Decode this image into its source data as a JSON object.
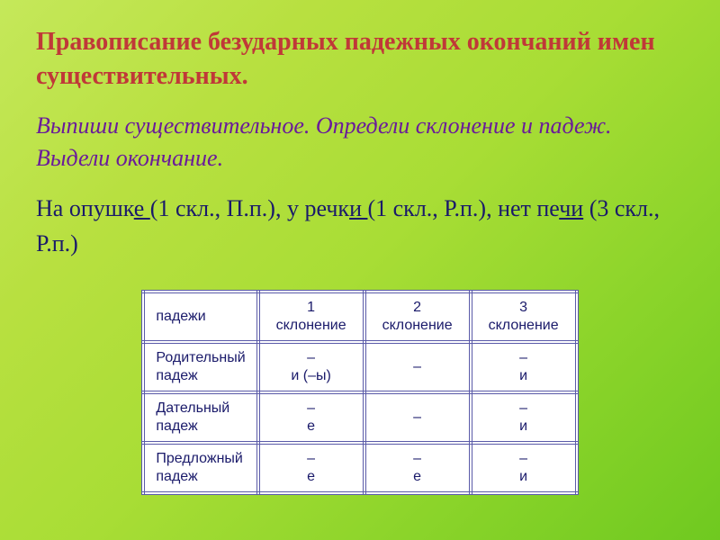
{
  "title": "Правописание безударных падежных окончаний имен существительных.",
  "instruction": "Выпиши существительное. Определи склонение и падеж. Выдели окончание.",
  "example": {
    "seg1": "На опушк",
    "u1": "е ",
    "seg2": "(1 скл., П.п.), у речк",
    "u2": "и ",
    "seg3": "(1 скл., Р.п.), нет пе",
    "u3": "чи",
    "seg4": " (3 скл., Р.п.)"
  },
  "table": {
    "headers": [
      "падежи",
      "1\nсклонение",
      "2\nсклонение",
      "3\nсклонение"
    ],
    "rows": [
      [
        "Родительный\nпадеж",
        "–\nи (–ы)",
        "–",
        "–\nи"
      ],
      [
        "Дательный\nпадеж",
        "–\nе",
        "–",
        "–\nи"
      ],
      [
        "Предложный\nпадеж",
        "–\nе",
        "–\nе",
        "–\nи"
      ]
    ]
  },
  "colors": {
    "title": "#c03838",
    "instruction": "#6a1b9a",
    "example": "#1a1a6a",
    "table_border": "#5a5aa8",
    "table_text": "#1a1a6a",
    "bg_start": "#c5e85a",
    "bg_end": "#6fc920"
  }
}
